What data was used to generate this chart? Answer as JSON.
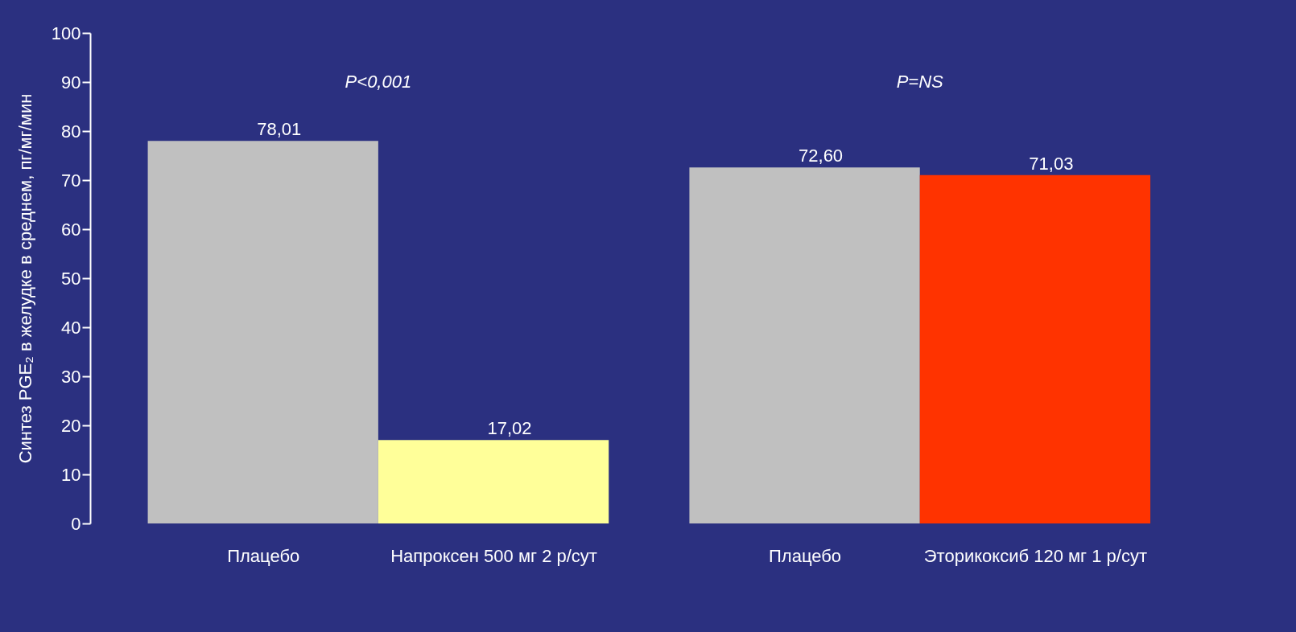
{
  "chart_data": {
    "type": "bar",
    "categories": [
      "Плацебо",
      "Напроксен 500 мг 2 р/сут",
      "Плацебо",
      "Эторикоксиб 120 мг 1 р/сут"
    ],
    "values": [
      78.01,
      17.02,
      72.6,
      71.03
    ],
    "colors": [
      "#c0c0c0",
      "#ffff99",
      "#c0c0c0",
      "#ff3300"
    ],
    "value_labels": [
      "78,01",
      "17,02",
      "72,60",
      "71,03"
    ],
    "ylabel": "Синтез PGE₂ в желудке в среднем, пг/мг/мин",
    "ylim": [
      0,
      100
    ],
    "yticks": [
      0,
      10,
      20,
      30,
      40,
      50,
      60,
      70,
      80,
      90,
      100
    ],
    "grid": false,
    "annotations": [
      "P<0,001",
      "P=NS"
    ]
  }
}
